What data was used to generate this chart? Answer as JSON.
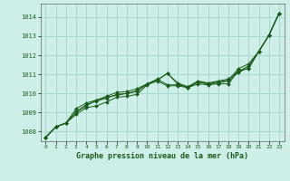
{
  "title": "Graphe pression niveau de la mer (hPa)",
  "background_color": "#ceeee8",
  "grid_color": "#a8d8d0",
  "line_color": "#1a5c1a",
  "marker_color": "#1a5c1a",
  "xlim": [
    -0.5,
    23.5
  ],
  "ylim": [
    1007.5,
    1014.7
  ],
  "yticks": [
    1008,
    1009,
    1010,
    1011,
    1012,
    1013,
    1014
  ],
  "xticks": [
    0,
    1,
    2,
    3,
    4,
    5,
    6,
    7,
    8,
    9,
    10,
    11,
    12,
    13,
    14,
    15,
    16,
    17,
    18,
    19,
    20,
    21,
    22,
    23
  ],
  "series": [
    [
      1007.7,
      1008.25,
      1008.45,
      1008.9,
      1009.25,
      1009.35,
      1009.55,
      1009.8,
      1009.85,
      1009.95,
      1010.45,
      1010.65,
      1010.4,
      1010.4,
      1010.3,
      1010.5,
      1010.45,
      1010.5,
      1010.5,
      1011.2,
      1011.3,
      1012.2,
      1013.05,
      1014.2
    ],
    [
      1007.7,
      1008.25,
      1008.45,
      1009.2,
      1009.5,
      1009.65,
      1009.85,
      1010.05,
      1010.1,
      1010.25,
      1010.5,
      1010.75,
      1010.45,
      1010.45,
      1010.35,
      1010.6,
      1010.5,
      1010.6,
      1010.7,
      1011.3,
      1011.55,
      1012.2,
      1013.05,
      1014.2
    ],
    [
      1007.7,
      1008.25,
      1008.45,
      1009.0,
      1009.35,
      1009.65,
      1009.8,
      1009.9,
      1010.0,
      1010.1,
      1010.5,
      1010.7,
      1011.05,
      1010.5,
      1010.3,
      1010.6,
      1010.5,
      1010.55,
      1010.65,
      1011.1,
      1011.35,
      1012.2,
      1013.05,
      1014.2
    ],
    [
      1007.7,
      1008.25,
      1008.45,
      1009.05,
      1009.4,
      1009.6,
      1009.75,
      1009.95,
      1010.0,
      1010.15,
      1010.5,
      1010.7,
      1011.05,
      1010.55,
      1010.35,
      1010.65,
      1010.55,
      1010.65,
      1010.75,
      1011.15,
      1011.45,
      1012.2,
      1013.05,
      1014.2
    ]
  ]
}
